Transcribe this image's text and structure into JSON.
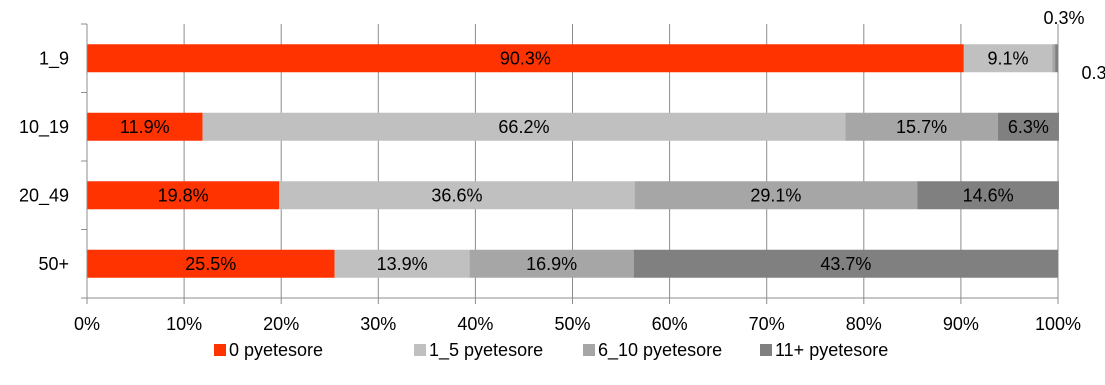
{
  "chart_data": {
    "type": "bar",
    "orientation": "horizontal",
    "stacked": true,
    "categories": [
      "1_9",
      "10_19",
      "20_49",
      "50+"
    ],
    "series": [
      {
        "name": "0 pyetesore",
        "color": "#ff3300",
        "values": [
          90.3,
          11.9,
          19.8,
          25.5
        ],
        "labels": [
          "90.3%",
          "11.9%",
          "19.8%",
          "25.5%"
        ]
      },
      {
        "name": "1_5 pyetesore",
        "color": "#c0c0c0",
        "values": [
          9.1,
          66.2,
          36.6,
          13.9
        ],
        "labels": [
          "9.1%",
          "66.2%",
          "36.6%",
          "13.9%"
        ]
      },
      {
        "name": "6_10 pyetesore",
        "color": "#a6a6a6",
        "values": [
          0.3,
          15.7,
          29.1,
          16.9
        ],
        "labels": [
          "0.3%",
          "15.7%",
          "29.1%",
          "16.9%"
        ]
      },
      {
        "name": "11+ pyetesore",
        "color": "#808080",
        "values": [
          0.3,
          6.3,
          14.6,
          43.7
        ],
        "labels": [
          "0.3%",
          "6.3%",
          "14.6%",
          "43.7%"
        ]
      }
    ],
    "x_ticks": [
      "0%",
      "10%",
      "20%",
      "30%",
      "40%",
      "50%",
      "60%",
      "70%",
      "80%",
      "90%",
      "100%"
    ],
    "xlim": [
      0,
      100
    ],
    "grid": true,
    "legend_position": "bottom",
    "title": "",
    "xlabel": "",
    "ylabel": ""
  }
}
